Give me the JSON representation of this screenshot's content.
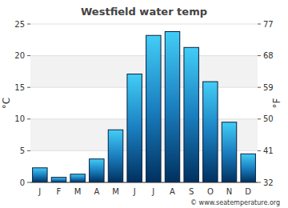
{
  "chart_data": {
    "type": "bar",
    "title": "Westfield water temp",
    "categories": [
      "J",
      "F",
      "M",
      "A",
      "M",
      "J",
      "J",
      "A",
      "S",
      "O",
      "N",
      "D"
    ],
    "values": [
      2.3,
      0.8,
      1.3,
      3.7,
      8.3,
      17.1,
      23.2,
      23.8,
      21.3,
      15.9,
      9.5,
      4.5
    ],
    "color": "#1a7fc0",
    "y_label": "°C",
    "y2_label": "°F",
    "ylim": [
      0,
      25
    ],
    "yticks": [
      0,
      5,
      10,
      15,
      20,
      25
    ],
    "y2lim": [
      32,
      77
    ],
    "y2ticks": [
      32,
      41,
      50,
      59,
      68,
      77
    ],
    "grid": true,
    "source": "© www.seatemperature.org"
  }
}
